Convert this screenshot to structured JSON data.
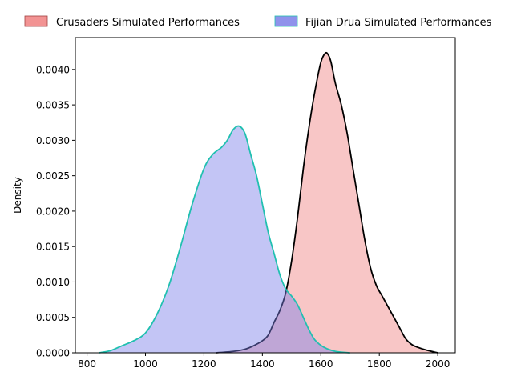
{
  "chart_data": {
    "type": "area",
    "title": "",
    "xlabel": "",
    "ylabel": "Density",
    "xlim": [
      760,
      2060
    ],
    "ylim": [
      0,
      0.00445
    ],
    "x_ticks": [
      800,
      1000,
      1200,
      1400,
      1600,
      1800,
      2000
    ],
    "y_ticks": [
      0.0,
      0.0005,
      0.001,
      0.0015,
      0.002,
      0.0025,
      0.003,
      0.0035,
      0.004
    ],
    "y_tick_labels": [
      "0.0000",
      "0.0005",
      "0.0010",
      "0.0015",
      "0.0020",
      "0.0025",
      "0.0030",
      "0.0035",
      "0.0040"
    ],
    "grid": false,
    "legend_position": "top, outside plot, horizontal",
    "series": [
      {
        "name": "Crusaders Simulated Performances",
        "fill_color": "#f08080",
        "line_color": "#000000",
        "x": [
          1240,
          1300,
          1340,
          1370,
          1400,
          1420,
          1440,
          1460,
          1480,
          1500,
          1520,
          1540,
          1560,
          1580,
          1600,
          1615,
          1625,
          1635,
          1650,
          1670,
          1690,
          1710,
          1730,
          1750,
          1770,
          1790,
          1810,
          1830,
          1850,
          1870,
          1890,
          1910,
          1930,
          1960,
          2000
        ],
        "y": [
          0.0,
          2e-05,
          5e-05,
          0.0001,
          0.00017,
          0.00025,
          0.00043,
          0.0006,
          0.00085,
          0.0013,
          0.0019,
          0.0026,
          0.0032,
          0.0037,
          0.0041,
          0.00423,
          0.00421,
          0.0041,
          0.0038,
          0.0035,
          0.0031,
          0.0026,
          0.0021,
          0.0016,
          0.0012,
          0.00095,
          0.0008,
          0.00065,
          0.0005,
          0.00035,
          0.0002,
          0.00012,
          8e-05,
          4e-05,
          0.0
        ]
      },
      {
        "name": "Fijian Drua Simulated Performances",
        "fill_color": "#7b7fe8",
        "line_color": "#20c0b0",
        "x": [
          840,
          880,
          920,
          960,
          1000,
          1040,
          1080,
          1120,
          1160,
          1200,
          1230,
          1260,
          1280,
          1300,
          1320,
          1340,
          1360,
          1380,
          1400,
          1420,
          1440,
          1460,
          1480,
          1500,
          1520,
          1540,
          1560,
          1580,
          1610,
          1650,
          1700
        ],
        "y": [
          0.0,
          3e-05,
          0.0001,
          0.00017,
          0.00028,
          0.00055,
          0.00095,
          0.0015,
          0.0021,
          0.0026,
          0.0028,
          0.0029,
          0.003,
          0.00315,
          0.0032,
          0.0031,
          0.0028,
          0.0025,
          0.0021,
          0.0017,
          0.0014,
          0.0011,
          0.0009,
          0.0008,
          0.00068,
          0.0005,
          0.00032,
          0.00018,
          8e-05,
          2e-05,
          0.0
        ]
      }
    ]
  }
}
